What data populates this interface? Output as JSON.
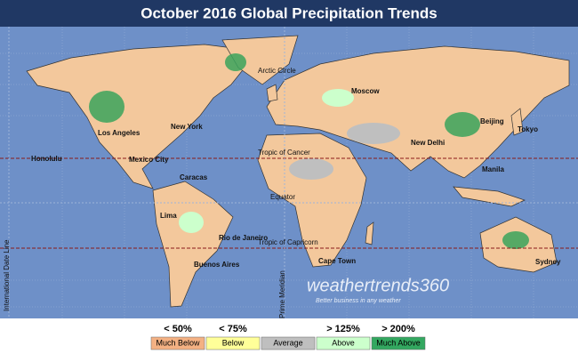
{
  "header": {
    "title": "October 2016 Global Precipitation Trends"
  },
  "map": {
    "reference_lines": {
      "arctic_circle": "Arctic Circle",
      "tropic_of_cancer": "Tropic of Cancer",
      "equator": "Equator",
      "tropic_of_capricorn": "Tropic of Capricorn",
      "prime_meridian": "Prime Meridian",
      "date_line": "International Date Line"
    },
    "cities": [
      "Moscow",
      "Beijing",
      "Tokyo",
      "New Delhi",
      "Manila",
      "Honolulu",
      "Los Angeles",
      "New York",
      "Mexico City",
      "Caracas",
      "Lima",
      "Rio de Janeiro",
      "Buenos Aires",
      "Cape Town",
      "Sydney"
    ]
  },
  "logo": {
    "name": "weathertrends360",
    "tagline": "Better business in any weather"
  },
  "legend": {
    "items": [
      {
        "threshold": "< 50%",
        "label": "Much Below"
      },
      {
        "threshold": "< 75%",
        "label": "Below"
      },
      {
        "threshold": null,
        "label": "Average"
      },
      {
        "threshold": "> 125%",
        "label": "Above"
      },
      {
        "threshold": "> 200%",
        "label": "Much Above"
      }
    ]
  }
}
